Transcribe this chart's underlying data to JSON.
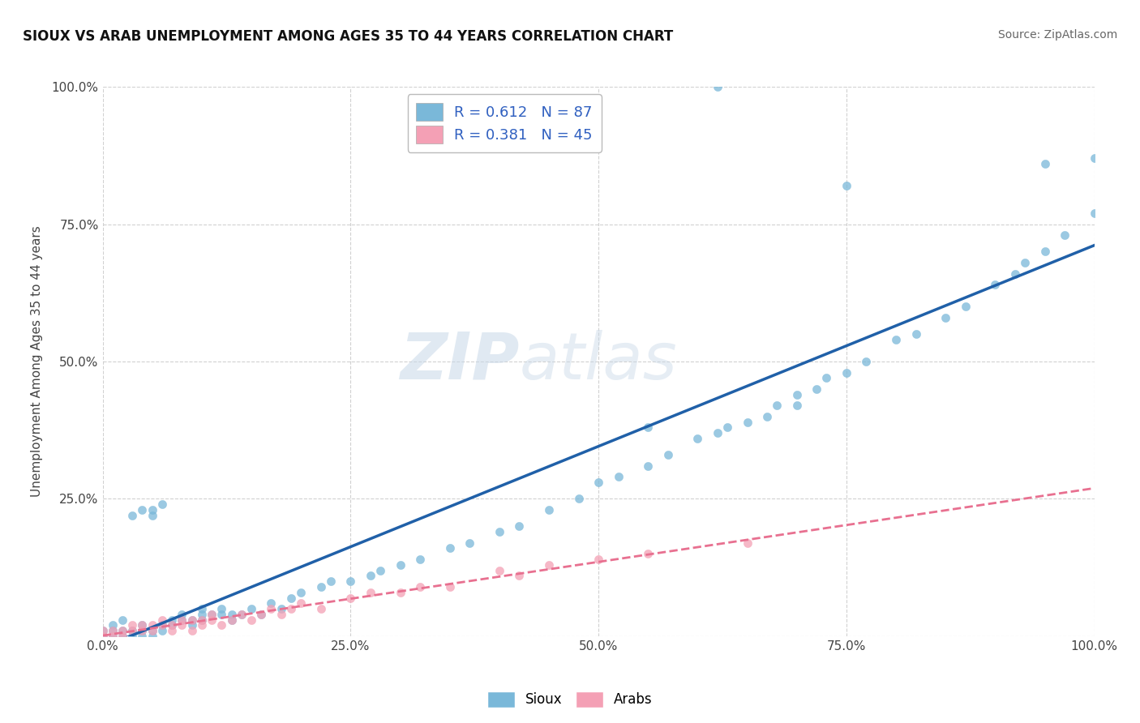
{
  "title": "SIOUX VS ARAB UNEMPLOYMENT AMONG AGES 35 TO 44 YEARS CORRELATION CHART",
  "source": "Source: ZipAtlas.com",
  "ylabel": "Unemployment Among Ages 35 to 44 years",
  "xlim": [
    0.0,
    1.0
  ],
  "ylim": [
    0.0,
    1.0
  ],
  "xticks": [
    0.0,
    0.25,
    0.5,
    0.75,
    1.0
  ],
  "yticks": [
    0.0,
    0.25,
    0.5,
    0.75,
    1.0
  ],
  "xticklabels": [
    "0.0%",
    "25.0%",
    "50.0%",
    "75.0%",
    "100.0%"
  ],
  "yticklabels": [
    "",
    "25.0%",
    "50.0%",
    "75.0%",
    "100.0%"
  ],
  "sioux_color": "#7ab8d9",
  "arab_color": "#f4a0b5",
  "sioux_line_color": "#2060a8",
  "arab_line_color": "#e87090",
  "sioux_R": 0.612,
  "sioux_N": 87,
  "arab_R": 0.381,
  "arab_N": 45,
  "background_color": "#ffffff",
  "grid_color": "#cccccc",
  "sioux_x": [
    0.0,
    0.0,
    0.01,
    0.01,
    0.01,
    0.02,
    0.02,
    0.02,
    0.03,
    0.03,
    0.03,
    0.04,
    0.04,
    0.04,
    0.04,
    0.05,
    0.05,
    0.05,
    0.05,
    0.06,
    0.06,
    0.06,
    0.07,
    0.07,
    0.08,
    0.08,
    0.09,
    0.09,
    0.1,
    0.1,
    0.1,
    0.11,
    0.12,
    0.12,
    0.13,
    0.13,
    0.14,
    0.15,
    0.16,
    0.17,
    0.18,
    0.19,
    0.2,
    0.22,
    0.23,
    0.25,
    0.27,
    0.28,
    0.3,
    0.32,
    0.35,
    0.37,
    0.4,
    0.42,
    0.45,
    0.48,
    0.5,
    0.52,
    0.55,
    0.55,
    0.57,
    0.6,
    0.62,
    0.63,
    0.65,
    0.67,
    0.68,
    0.7,
    0.7,
    0.72,
    0.73,
    0.75,
    0.77,
    0.8,
    0.82,
    0.85,
    0.87,
    0.9,
    0.92,
    0.93,
    0.95,
    0.97,
    1.0,
    1.0,
    0.62,
    0.75,
    0.95
  ],
  "sioux_y": [
    0.0,
    0.01,
    0.0,
    0.01,
    0.02,
    0.0,
    0.01,
    0.03,
    0.0,
    0.01,
    0.22,
    0.0,
    0.01,
    0.02,
    0.23,
    0.0,
    0.01,
    0.22,
    0.23,
    0.01,
    0.02,
    0.24,
    0.02,
    0.03,
    0.03,
    0.04,
    0.02,
    0.03,
    0.03,
    0.04,
    0.05,
    0.04,
    0.04,
    0.05,
    0.03,
    0.04,
    0.04,
    0.05,
    0.04,
    0.06,
    0.05,
    0.07,
    0.08,
    0.09,
    0.1,
    0.1,
    0.11,
    0.12,
    0.13,
    0.14,
    0.16,
    0.17,
    0.19,
    0.2,
    0.23,
    0.25,
    0.28,
    0.29,
    0.31,
    0.38,
    0.33,
    0.36,
    0.37,
    0.38,
    0.39,
    0.4,
    0.42,
    0.42,
    0.44,
    0.45,
    0.47,
    0.48,
    0.5,
    0.54,
    0.55,
    0.58,
    0.6,
    0.64,
    0.66,
    0.68,
    0.7,
    0.73,
    0.77,
    0.87,
    1.0,
    0.82,
    0.86
  ],
  "arab_x": [
    0.0,
    0.0,
    0.01,
    0.01,
    0.02,
    0.02,
    0.03,
    0.03,
    0.04,
    0.04,
    0.05,
    0.05,
    0.06,
    0.06,
    0.07,
    0.07,
    0.08,
    0.08,
    0.09,
    0.09,
    0.1,
    0.1,
    0.11,
    0.11,
    0.12,
    0.13,
    0.14,
    0.15,
    0.16,
    0.17,
    0.18,
    0.19,
    0.2,
    0.22,
    0.25,
    0.27,
    0.3,
    0.32,
    0.35,
    0.4,
    0.42,
    0.45,
    0.5,
    0.55,
    0.65
  ],
  "arab_y": [
    0.0,
    0.01,
    0.0,
    0.01,
    0.0,
    0.01,
    0.01,
    0.02,
    0.01,
    0.02,
    0.01,
    0.02,
    0.02,
    0.03,
    0.01,
    0.02,
    0.02,
    0.03,
    0.01,
    0.03,
    0.02,
    0.03,
    0.03,
    0.04,
    0.02,
    0.03,
    0.04,
    0.03,
    0.04,
    0.05,
    0.04,
    0.05,
    0.06,
    0.05,
    0.07,
    0.08,
    0.08,
    0.09,
    0.09,
    0.12,
    0.11,
    0.13,
    0.14,
    0.15,
    0.17
  ]
}
